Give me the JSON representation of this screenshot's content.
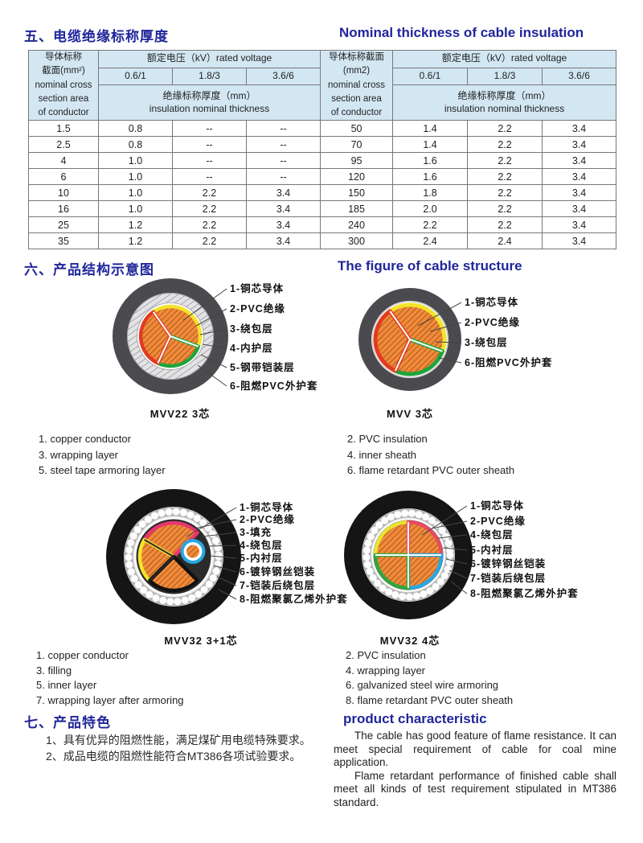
{
  "section5": {
    "title_zh": "五、电缆绝缘标称厚度",
    "title_en": "Nominal thickness of cable insulation",
    "table": {
      "left_header_lines": [
        "导体标称",
        "截面(mm²)",
        "nominal cross",
        "section area",
        "of conductor"
      ],
      "right_header_lines": [
        "导体标称截面",
        "(mm2)",
        "nominal cross",
        "section area",
        "of conductor"
      ],
      "rated_voltage_label": "额定电压（kV）rated voltage",
      "voltages": [
        "0.6/1",
        "1.8/3",
        "3.6/6"
      ],
      "insulation_zh": "绝缘标称厚度（mm）",
      "insulation_en": "insulation nominal thickness",
      "rows": [
        [
          "1.5",
          "0.8",
          "--",
          "--",
          "50",
          "1.4",
          "2.2",
          "3.4"
        ],
        [
          "2.5",
          "0.8",
          "--",
          "--",
          "70",
          "1.4",
          "2.2",
          "3.4"
        ],
        [
          "4",
          "1.0",
          "--",
          "--",
          "95",
          "1.6",
          "2.2",
          "3.4"
        ],
        [
          "6",
          "1.0",
          "--",
          "--",
          "120",
          "1.6",
          "2.2",
          "3.4"
        ],
        [
          "10",
          "1.0",
          "2.2",
          "3.4",
          "150",
          "1.8",
          "2.2",
          "3.4"
        ],
        [
          "16",
          "1.0",
          "2.2",
          "3.4",
          "185",
          "2.0",
          "2.2",
          "3.4"
        ],
        [
          "25",
          "1.2",
          "2.2",
          "3.4",
          "240",
          "2.2",
          "2.2",
          "3.4"
        ],
        [
          "35",
          "1.2",
          "2.2",
          "3.4",
          "300",
          "2.4",
          "2.4",
          "3.4"
        ]
      ]
    }
  },
  "section6": {
    "title_zh": "六、产品结构示意图",
    "title_en": "The figure of cable structure",
    "diagrams": {
      "mvv22": {
        "caption": "MVV22 3芯",
        "labels": [
          "1-铜芯导体",
          "2-PVC绝缘",
          "3-绕包层",
          "4-内护层",
          "5-钢带铠装层",
          "6-阻燃PVC外护套"
        ]
      },
      "mvv": {
        "caption": "MVV 3芯",
        "labels": [
          "1-铜芯导体",
          "2-PVC绝缘",
          "3-绕包层",
          "6-阻燃PVC外护套"
        ]
      },
      "mvv32_3p1": {
        "caption": "MVV32 3+1芯",
        "labels": [
          "1-铜芯导体",
          "2-PVC绝缘",
          "3-填充",
          "4-绕包层",
          "5-内衬层",
          "6-镀锌钢丝铠装",
          "7-铠装后绕包层",
          "8-阻燃聚氯乙烯外护套"
        ]
      },
      "mvv32_4": {
        "caption": "MVV32 4芯",
        "labels": [
          "1-铜芯导体",
          "2-PVC绝缘",
          "4-绕包层",
          "5-内衬层",
          "6-镀锌钢丝铠装",
          "7-铠装后绕包层",
          "8-阻燃聚氯乙烯外护套"
        ]
      }
    },
    "legend1": {
      "left": [
        "1. copper conductor",
        "3. wrapping layer",
        "5. steel tape armoring layer"
      ],
      "right": [
        "2.  PVC insulation",
        "4.  inner sheath",
        "6.  flame retardant PVC outer sheath"
      ]
    },
    "legend2": {
      "left": [
        "1.  copper conductor",
        "3.  filling",
        "5.  inner layer",
        "7.  wrapping layer after armoring"
      ],
      "right": [
        "2. PVC insulation",
        "4. wrapping layer",
        "6. galvanized steel wire armoring",
        "8. flame retardant PVC outer sheath"
      ]
    }
  },
  "section7": {
    "title_zh": "七、产品特色",
    "title_en": "product characteristic",
    "items_zh": [
      "1、具有优异的阻燃性能，满足煤矿用电缆特殊要求。",
      "2、成品电缆的阻燃性能符合MT386各项试验要求。"
    ],
    "paragraphs_en": [
      "The cable has good feature of flame resistance. It can meet special requirement of cable for coal mine application.",
      "Flame retardant performance of finished cable shall meet all kinds of test requirement stipulated in MT386 standard."
    ]
  },
  "colors": {
    "heading_blue": "#20269a",
    "table_header_bg": "#d3e7f3",
    "conductor_orange": "#f08a3c",
    "insulation_red": "#e23b20",
    "insulation_yellow": "#f3e32b",
    "insulation_green": "#1ea53c",
    "insulation_pink": "#e8356f",
    "insulation_cyan": "#29a7e0",
    "sheath_gray": "#4b4b4f",
    "sheath_black": "#151515"
  }
}
